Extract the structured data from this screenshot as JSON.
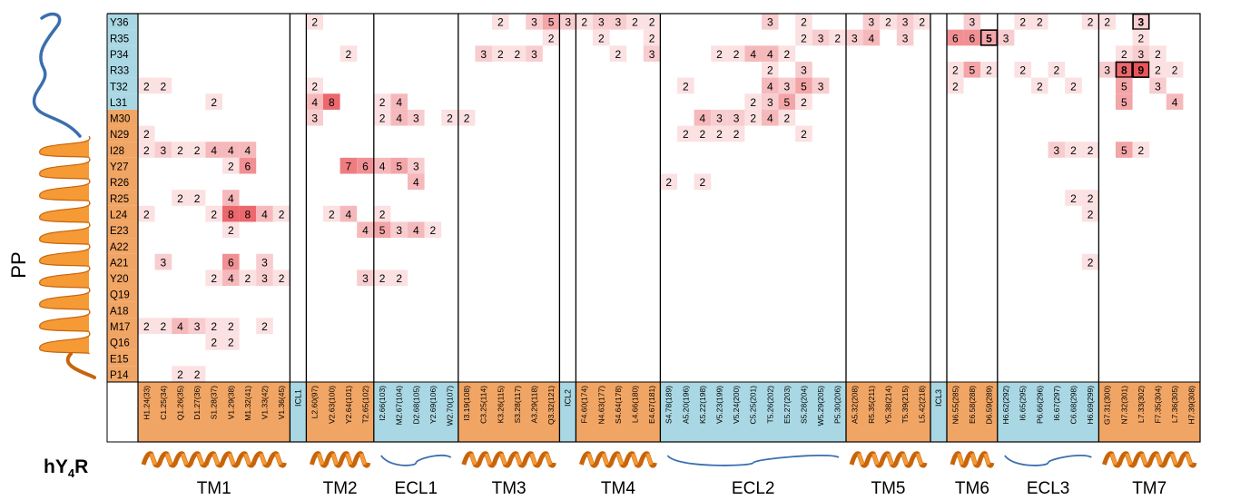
{
  "colors": {
    "pp_helix_orange": "#f1a564",
    "pp_tail_blue": "#a9d8e4",
    "helix_dark": "#c8640a",
    "helix_light": "#f59a35",
    "loop_blue": "#3a6fae",
    "heat_low": "#fbe1e2",
    "heat_high": "#e9545a"
  },
  "pp_axis_label": "PP",
  "receptor_label": "hY",
  "receptor_sub": "4",
  "receptor_suffix": "R",
  "pp_residues": [
    {
      "label": "Y36",
      "seg": "blue"
    },
    {
      "label": "R35",
      "seg": "blue"
    },
    {
      "label": "P34",
      "seg": "blue"
    },
    {
      "label": "R33",
      "seg": "blue"
    },
    {
      "label": "T32",
      "seg": "blue"
    },
    {
      "label": "L31",
      "seg": "blue"
    },
    {
      "label": "M30",
      "seg": "orange"
    },
    {
      "label": "N29",
      "seg": "orange"
    },
    {
      "label": "I28",
      "seg": "orange"
    },
    {
      "label": "Y27",
      "seg": "orange"
    },
    {
      "label": "R26",
      "seg": "orange"
    },
    {
      "label": "R25",
      "seg": "orange"
    },
    {
      "label": "L24",
      "seg": "orange"
    },
    {
      "label": "E23",
      "seg": "orange"
    },
    {
      "label": "A22",
      "seg": "orange"
    },
    {
      "label": "A21",
      "seg": "orange"
    },
    {
      "label": "Y20",
      "seg": "orange"
    },
    {
      "label": "Q19",
      "seg": "orange"
    },
    {
      "label": "A18",
      "seg": "orange"
    },
    {
      "label": "M17",
      "seg": "orange"
    },
    {
      "label": "Q16",
      "seg": "orange"
    },
    {
      "label": "E15",
      "seg": "orange"
    },
    {
      "label": "P14",
      "seg": "orange"
    }
  ],
  "segments": [
    {
      "name": "TM1",
      "type": "helix",
      "residues": [
        "H1.24(33)",
        "C1.25(34)",
        "Q1.26(35)",
        "D1.27(36)",
        "S1.28(37)",
        "V1.29(38)",
        "M1.32(41)",
        "V1.33(42)",
        "V1.36(45)"
      ]
    },
    {
      "name": "ICL1",
      "type": "loop",
      "residues": []
    },
    {
      "name": "TM2",
      "type": "helix",
      "residues": [
        "L2.60(97)",
        "V2.63(100)",
        "Y2.64(101)",
        "T2.65(102)"
      ]
    },
    {
      "name": "ECL1",
      "type": "loop",
      "residues": [
        "I2.66(103)",
        "M2.67(104)",
        "D2.68(105)",
        "Y2.69(106)",
        "W2.70(107)"
      ]
    },
    {
      "name": "TM3",
      "type": "helix",
      "residues": [
        "I3.19(108)",
        "C3.25(114)",
        "K3.26(115)",
        "S3.28(117)",
        "A3.29(118)",
        "Q3.32(121)"
      ]
    },
    {
      "name": "ICL2",
      "type": "loop",
      "residues": []
    },
    {
      "name": "TM4",
      "type": "helix",
      "residues": [
        "F4.60(174)",
        "N4.63(177)",
        "S4.64(178)",
        "L4.66(180)",
        "E4.67(181)"
      ]
    },
    {
      "name": "ECL2",
      "type": "loop",
      "residues": [
        "S4.78(189)",
        "A5.20(196)",
        "K5.22(198)",
        "V5.23(199)",
        "V5.24(200)",
        "C5.25(201)",
        "T5.26(202)",
        "E5.27(203)",
        "S5.28(204)",
        "W5.29(205)",
        "P5.30(206)"
      ]
    },
    {
      "name": "TM5",
      "type": "helix",
      "residues": [
        "A5.32(208)",
        "R5.35(211)",
        "Y5.38(214)",
        "T5.39(215)",
        "L5.42(218)"
      ]
    },
    {
      "name": "ICL3",
      "type": "loop",
      "residues": []
    },
    {
      "name": "TM6",
      "type": "helix",
      "residues": [
        "N6.55(285)",
        "E6.58(288)",
        "D6.59(289)"
      ]
    },
    {
      "name": "ECL3",
      "type": "loop",
      "residues": [
        "H6.62(292)",
        "I6.65(295)",
        "P6.66(296)",
        "I6.67(297)",
        "C6.68(298)",
        "H6.69(299)"
      ]
    },
    {
      "name": "TM7",
      "type": "helix",
      "residues": [
        "G7.31(300)",
        "N7.32(301)",
        "L7.33(302)",
        "F7.35(304)",
        "L7.36(305)",
        "H7.39(308)"
      ]
    }
  ],
  "contacts": [
    {
      "pp": "Y36",
      "res": "L2.60(97)",
      "v": 2
    },
    {
      "pp": "Y36",
      "res": "K3.26(115)",
      "v": 2
    },
    {
      "pp": "Y36",
      "res": "A3.29(118)",
      "v": 3
    },
    {
      "pp": "Y36",
      "res": "Q3.32(121)",
      "v": 5
    },
    {
      "pp": "Y36",
      "res": "Q3.32(121)",
      "v": 3,
      "col_offset": 1
    },
    {
      "pp": "Y36",
      "res": "F4.60(174)",
      "v": 2
    },
    {
      "pp": "Y36",
      "res": "N4.63(177)",
      "v": 3
    },
    {
      "pp": "Y36",
      "res": "S4.64(178)",
      "v": 3
    },
    {
      "pp": "Y36",
      "res": "L4.66(180)",
      "v": 2
    },
    {
      "pp": "Y36",
      "res": "E4.67(181)",
      "v": 2
    },
    {
      "pp": "Y36",
      "res": "T5.26(202)",
      "v": 3
    },
    {
      "pp": "Y36",
      "res": "S5.28(204)",
      "v": 2
    },
    {
      "pp": "Y36",
      "res": "R5.35(211)",
      "v": 3
    },
    {
      "pp": "Y36",
      "res": "Y5.38(214)",
      "v": 2
    },
    {
      "pp": "Y36",
      "res": "T5.39(215)",
      "v": 3
    },
    {
      "pp": "Y36",
      "res": "L5.42(218)",
      "v": 2
    },
    {
      "pp": "Y36",
      "res": "E6.58(288)",
      "v": 3
    },
    {
      "pp": "Y36",
      "res": "I6.65(295)",
      "v": 2
    },
    {
      "pp": "Y36",
      "res": "P6.66(296)",
      "v": 2
    },
    {
      "pp": "Y36",
      "res": "H6.69(299)",
      "v": 2
    },
    {
      "pp": "Y36",
      "res": "G7.31(300)",
      "v": 2
    },
    {
      "pp": "Y36",
      "res": "L7.33(302)",
      "v": 3,
      "boxed": true
    },
    {
      "pp": "R35",
      "res": "Q3.32(121)",
      "v": 2
    },
    {
      "pp": "R35",
      "res": "N4.63(177)",
      "v": 2
    },
    {
      "pp": "R35",
      "res": "E4.67(181)",
      "v": 2
    },
    {
      "pp": "R35",
      "res": "S5.28(204)",
      "v": 2
    },
    {
      "pp": "R35",
      "res": "W5.29(205)",
      "v": 3
    },
    {
      "pp": "R35",
      "res": "P5.30(206)",
      "v": 2
    },
    {
      "pp": "R35",
      "res": "A5.32(208)",
      "v": 3
    },
    {
      "pp": "R35",
      "res": "R5.35(211)",
      "v": 4
    },
    {
      "pp": "R35",
      "res": "T5.39(215)",
      "v": 3
    },
    {
      "pp": "R35",
      "res": "N6.55(285)",
      "v": 6
    },
    {
      "pp": "R35",
      "res": "E6.58(288)",
      "v": 6
    },
    {
      "pp": "R35",
      "res": "D6.59(289)",
      "v": 5,
      "boxed": true
    },
    {
      "pp": "R35",
      "res": "H6.62(292)",
      "v": 3
    },
    {
      "pp": "R35",
      "res": "L7.33(302)",
      "v": 2
    },
    {
      "pp": "P34",
      "res": "Y2.64(101)",
      "v": 2
    },
    {
      "pp": "P34",
      "res": "C3.25(114)",
      "v": 3
    },
    {
      "pp": "P34",
      "res": "K3.26(115)",
      "v": 2
    },
    {
      "pp": "P34",
      "res": "S3.28(117)",
      "v": 2
    },
    {
      "pp": "P34",
      "res": "A3.29(118)",
      "v": 3
    },
    {
      "pp": "P34",
      "res": "S4.64(178)",
      "v": 2
    },
    {
      "pp": "P34",
      "res": "E4.67(181)",
      "v": 3
    },
    {
      "pp": "P34",
      "res": "V5.23(199)",
      "v": 2
    },
    {
      "pp": "P34",
      "res": "V5.24(200)",
      "v": 2
    },
    {
      "pp": "P34",
      "res": "C5.25(201)",
      "v": 4
    },
    {
      "pp": "P34",
      "res": "T5.26(202)",
      "v": 4
    },
    {
      "pp": "P34",
      "res": "E5.27(203)",
      "v": 2
    },
    {
      "pp": "P34",
      "res": "N7.32(301)",
      "v": 2
    },
    {
      "pp": "P34",
      "res": "L7.33(302)",
      "v": 3
    },
    {
      "pp": "P34",
      "res": "F7.35(304)",
      "v": 2
    },
    {
      "pp": "R33",
      "res": "T5.26(202)",
      "v": 2
    },
    {
      "pp": "R33",
      "res": "S5.28(204)",
      "v": 3
    },
    {
      "pp": "R33",
      "res": "N6.55(285)",
      "v": 2
    },
    {
      "pp": "R33",
      "res": "E6.58(288)",
      "v": 5
    },
    {
      "pp": "R33",
      "res": "D6.59(289)",
      "v": 2
    },
    {
      "pp": "R33",
      "res": "I6.65(295)",
      "v": 2
    },
    {
      "pp": "R33",
      "res": "I6.67(297)",
      "v": 2
    },
    {
      "pp": "R33",
      "res": "G7.31(300)",
      "v": 3
    },
    {
      "pp": "R33",
      "res": "N7.32(301)",
      "v": 8,
      "boxed": true
    },
    {
      "pp": "R33",
      "res": "L7.33(302)",
      "v": 9,
      "boxed": true
    },
    {
      "pp": "R33",
      "res": "F7.35(304)",
      "v": 2
    },
    {
      "pp": "R33",
      "res": "L7.36(305)",
      "v": 2
    },
    {
      "pp": "T32",
      "res": "H1.24(33)",
      "v": 2
    },
    {
      "pp": "T32",
      "res": "C1.25(34)",
      "v": 2
    },
    {
      "pp": "T32",
      "res": "L2.60(97)",
      "v": 2
    },
    {
      "pp": "T32",
      "res": "A5.20(196)",
      "v": 2
    },
    {
      "pp": "T32",
      "res": "T5.26(202)",
      "v": 4
    },
    {
      "pp": "T32",
      "res": "E5.27(203)",
      "v": 3
    },
    {
      "pp": "T32",
      "res": "S5.28(204)",
      "v": 5
    },
    {
      "pp": "T32",
      "res": "W5.29(205)",
      "v": 3
    },
    {
      "pp": "T32",
      "res": "N6.55(285)",
      "v": 2
    },
    {
      "pp": "T32",
      "res": "P6.66(296)",
      "v": 2
    },
    {
      "pp": "T32",
      "res": "C6.68(298)",
      "v": 2
    },
    {
      "pp": "T32",
      "res": "N7.32(301)",
      "v": 5
    },
    {
      "pp": "T32",
      "res": "F7.35(304)",
      "v": 3
    },
    {
      "pp": "L31",
      "res": "S1.28(37)",
      "v": 2
    },
    {
      "pp": "L31",
      "res": "L2.60(97)",
      "v": 4
    },
    {
      "pp": "L31",
      "res": "V2.63(100)",
      "v": 8
    },
    {
      "pp": "L31",
      "res": "I2.66(103)",
      "v": 2
    },
    {
      "pp": "L31",
      "res": "M2.67(104)",
      "v": 4
    },
    {
      "pp": "L31",
      "res": "C5.25(201)",
      "v": 2
    },
    {
      "pp": "L31",
      "res": "T5.26(202)",
      "v": 3
    },
    {
      "pp": "L31",
      "res": "E5.27(203)",
      "v": 5
    },
    {
      "pp": "L31",
      "res": "S5.28(204)",
      "v": 2
    },
    {
      "pp": "L31",
      "res": "N7.32(301)",
      "v": 5
    },
    {
      "pp": "L31",
      "res": "L7.36(305)",
      "v": 4
    },
    {
      "pp": "M30",
      "res": "L2.60(97)",
      "v": 3
    },
    {
      "pp": "M30",
      "res": "I2.66(103)",
      "v": 2
    },
    {
      "pp": "M30",
      "res": "M2.67(104)",
      "v": 4
    },
    {
      "pp": "M30",
      "res": "D2.68(105)",
      "v": 3
    },
    {
      "pp": "M30",
      "res": "W2.70(107)",
      "v": 2
    },
    {
      "pp": "M30",
      "res": "I3.19(108)",
      "v": 2
    },
    {
      "pp": "M30",
      "res": "K5.22(198)",
      "v": 4
    },
    {
      "pp": "M30",
      "res": "V5.23(199)",
      "v": 3
    },
    {
      "pp": "M30",
      "res": "V5.24(200)",
      "v": 3
    },
    {
      "pp": "M30",
      "res": "C5.25(201)",
      "v": 2
    },
    {
      "pp": "M30",
      "res": "T5.26(202)",
      "v": 4
    },
    {
      "pp": "M30",
      "res": "E5.27(203)",
      "v": 2
    },
    {
      "pp": "N29",
      "res": "H1.24(33)",
      "v": 2
    },
    {
      "pp": "N29",
      "res": "A5.20(196)",
      "v": 2
    },
    {
      "pp": "N29",
      "res": "K5.22(198)",
      "v": 2
    },
    {
      "pp": "N29",
      "res": "V5.23(199)",
      "v": 2
    },
    {
      "pp": "N29",
      "res": "V5.24(200)",
      "v": 2
    },
    {
      "pp": "N29",
      "res": "S5.28(204)",
      "v": 2
    },
    {
      "pp": "I28",
      "res": "H1.24(33)",
      "v": 2
    },
    {
      "pp": "I28",
      "res": "C1.25(34)",
      "v": 3
    },
    {
      "pp": "I28",
      "res": "Q1.26(35)",
      "v": 2
    },
    {
      "pp": "I28",
      "res": "D1.27(36)",
      "v": 2
    },
    {
      "pp": "I28",
      "res": "S1.28(37)",
      "v": 4
    },
    {
      "pp": "I28",
      "res": "V1.29(38)",
      "v": 4
    },
    {
      "pp": "I28",
      "res": "M1.32(41)",
      "v": 4
    },
    {
      "pp": "I28",
      "res": "I6.67(297)",
      "v": 3
    },
    {
      "pp": "I28",
      "res": "C6.68(298)",
      "v": 2
    },
    {
      "pp": "I28",
      "res": "H6.69(299)",
      "v": 2
    },
    {
      "pp": "I28",
      "res": "N7.32(301)",
      "v": 5
    },
    {
      "pp": "I28",
      "res": "L7.33(302)",
      "v": 2
    },
    {
      "pp": "Y27",
      "res": "V1.29(38)",
      "v": 2
    },
    {
      "pp": "Y27",
      "res": "M1.32(41)",
      "v": 6
    },
    {
      "pp": "Y27",
      "res": "Y2.64(101)",
      "v": 7
    },
    {
      "pp": "Y27",
      "res": "T2.65(102)",
      "v": 6
    },
    {
      "pp": "Y27",
      "res": "I2.66(103)",
      "v": 4
    },
    {
      "pp": "Y27",
      "res": "M2.67(104)",
      "v": 5
    },
    {
      "pp": "Y27",
      "res": "D2.68(105)",
      "v": 3
    },
    {
      "pp": "R26",
      "res": "D2.68(105)",
      "v": 4
    },
    {
      "pp": "R26",
      "res": "S4.78(189)",
      "v": 2
    },
    {
      "pp": "R26",
      "res": "K5.22(198)",
      "v": 2
    },
    {
      "pp": "R25",
      "res": "Q1.26(35)",
      "v": 2
    },
    {
      "pp": "R25",
      "res": "D1.27(36)",
      "v": 2
    },
    {
      "pp": "R25",
      "res": "V1.29(38)",
      "v": 4
    },
    {
      "pp": "R25",
      "res": "C6.68(298)",
      "v": 2
    },
    {
      "pp": "R25",
      "res": "H6.69(299)",
      "v": 2
    },
    {
      "pp": "L24",
      "res": "H1.24(33)",
      "v": 2
    },
    {
      "pp": "L24",
      "res": "S1.28(37)",
      "v": 2
    },
    {
      "pp": "L24",
      "res": "V1.29(38)",
      "v": 8
    },
    {
      "pp": "L24",
      "res": "M1.32(41)",
      "v": 8
    },
    {
      "pp": "L24",
      "res": "V1.33(42)",
      "v": 4
    },
    {
      "pp": "L24",
      "res": "V1.36(45)",
      "v": 2
    },
    {
      "pp": "L24",
      "res": "V2.63(100)",
      "v": 2
    },
    {
      "pp": "L24",
      "res": "Y2.64(101)",
      "v": 4
    },
    {
      "pp": "L24",
      "res": "I2.66(103)",
      "v": 2
    },
    {
      "pp": "L24",
      "res": "H6.69(299)",
      "v": 2
    },
    {
      "pp": "E23",
      "res": "V1.29(38)",
      "v": 2
    },
    {
      "pp": "E23",
      "res": "T2.65(102)",
      "v": 4
    },
    {
      "pp": "E23",
      "res": "I2.66(103)",
      "v": 5
    },
    {
      "pp": "E23",
      "res": "M2.67(104)",
      "v": 3
    },
    {
      "pp": "E23",
      "res": "D2.68(105)",
      "v": 4
    },
    {
      "pp": "E23",
      "res": "Y2.69(106)",
      "v": 2
    },
    {
      "pp": "A21",
      "res": "C1.25(34)",
      "v": 3
    },
    {
      "pp": "A21",
      "res": "V1.29(38)",
      "v": 6
    },
    {
      "pp": "A21",
      "res": "V1.33(42)",
      "v": 3
    },
    {
      "pp": "A21",
      "res": "H6.69(299)",
      "v": 2
    },
    {
      "pp": "Y20",
      "res": "S1.28(37)",
      "v": 2
    },
    {
      "pp": "Y20",
      "res": "V1.29(38)",
      "v": 4
    },
    {
      "pp": "Y20",
      "res": "M1.32(41)",
      "v": 2
    },
    {
      "pp": "Y20",
      "res": "V1.33(42)",
      "v": 3
    },
    {
      "pp": "Y20",
      "res": "V1.36(45)",
      "v": 2
    },
    {
      "pp": "Y20",
      "res": "T2.65(102)",
      "v": 3
    },
    {
      "pp": "Y20",
      "res": "I2.66(103)",
      "v": 2
    },
    {
      "pp": "Y20",
      "res": "M2.67(104)",
      "v": 2
    },
    {
      "pp": "M17",
      "res": "H1.24(33)",
      "v": 2
    },
    {
      "pp": "M17",
      "res": "C1.25(34)",
      "v": 2
    },
    {
      "pp": "M17",
      "res": "Q1.26(35)",
      "v": 4
    },
    {
      "pp": "M17",
      "res": "D1.27(36)",
      "v": 3
    },
    {
      "pp": "M17",
      "res": "S1.28(37)",
      "v": 2
    },
    {
      "pp": "M17",
      "res": "V1.29(38)",
      "v": 2
    },
    {
      "pp": "M17",
      "res": "V1.33(42)",
      "v": 2
    },
    {
      "pp": "Q16",
      "res": "S1.28(37)",
      "v": 2
    },
    {
      "pp": "Q16",
      "res": "V1.29(38)",
      "v": 2
    },
    {
      "pp": "P14",
      "res": "Q1.26(35)",
      "v": 2
    },
    {
      "pp": "P14",
      "res": "D1.27(36)",
      "v": 2
    }
  ]
}
